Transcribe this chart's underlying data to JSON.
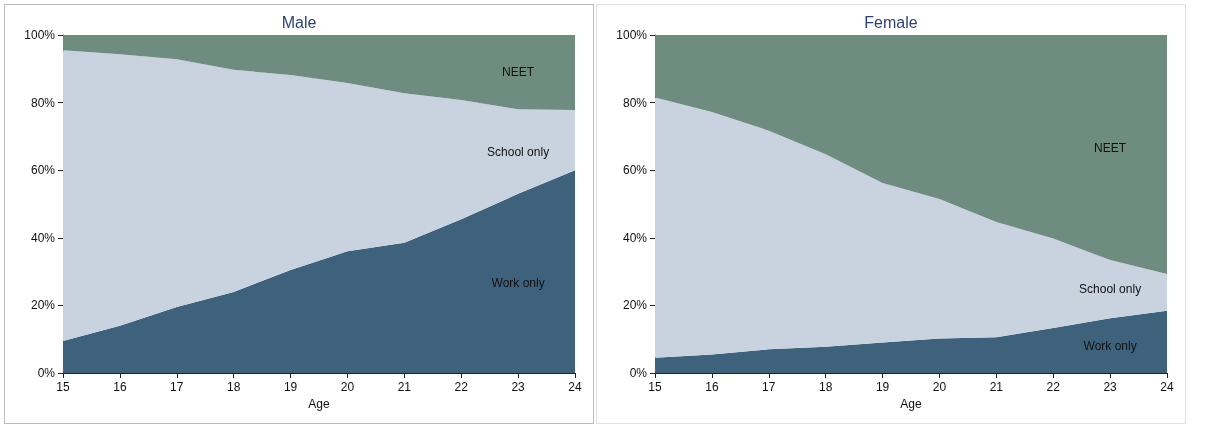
{
  "chart_data": [
    {
      "type": "area",
      "title": "Male",
      "xlabel": "Age",
      "stacked": true,
      "legend": false,
      "grid": false,
      "x": [
        15,
        16,
        17,
        18,
        19,
        20,
        21,
        22,
        23,
        24
      ],
      "xlim": [
        15,
        24
      ],
      "xticks": [
        15,
        16,
        17,
        18,
        19,
        20,
        21,
        22,
        23,
        24
      ],
      "ylim": [
        0,
        100
      ],
      "yticks": [
        {
          "value": 0,
          "label": "0%"
        },
        {
          "value": 20,
          "label": "20%"
        },
        {
          "value": 40,
          "label": "40%"
        },
        {
          "value": 60,
          "label": "60%"
        },
        {
          "value": 80,
          "label": "80%"
        },
        {
          "value": 100,
          "label": "100%"
        }
      ],
      "series": [
        {
          "name": "Work only",
          "color": "#3f627c",
          "values": [
            9.5,
            14,
            19.5,
            24,
            30.5,
            36,
            38.5,
            45.5,
            53,
            60
          ]
        },
        {
          "name": "School only",
          "color": "#c8d3df",
          "values": [
            86,
            80.3,
            73.3,
            65.7,
            57.7,
            49.8,
            44.3,
            35.3,
            25,
            17.8
          ]
        },
        {
          "name": "NEET",
          "color": "#6e8d80",
          "values": [
            4.5,
            5.7,
            7.2,
            10.3,
            11.8,
            14.2,
            17.2,
            19.2,
            22,
            22.2
          ]
        }
      ]
    },
    {
      "type": "area",
      "title": "Female",
      "xlabel": "Age",
      "stacked": true,
      "legend": false,
      "grid": false,
      "x": [
        15,
        16,
        17,
        18,
        19,
        20,
        21,
        22,
        23,
        24
      ],
      "xlim": [
        15,
        24
      ],
      "xticks": [
        15,
        16,
        17,
        18,
        19,
        20,
        21,
        22,
        23,
        24
      ],
      "ylim": [
        0,
        100
      ],
      "yticks": [
        {
          "value": 0,
          "label": "0%"
        },
        {
          "value": 20,
          "label": "20%"
        },
        {
          "value": 40,
          "label": "40%"
        },
        {
          "value": 60,
          "label": "60%"
        },
        {
          "value": 80,
          "label": "80%"
        },
        {
          "value": 100,
          "label": "100%"
        }
      ],
      "series": [
        {
          "name": "Work only",
          "color": "#3f627c",
          "values": [
            4.5,
            5.5,
            7,
            7.8,
            9,
            10.2,
            10.6,
            13.3,
            16.2,
            18.4
          ]
        },
        {
          "name": "School only",
          "color": "#c8d3df",
          "values": [
            77,
            71.7,
            64.7,
            56.9,
            47.2,
            41.3,
            34.1,
            26.5,
            17.2,
            10.9
          ]
        },
        {
          "name": "NEET",
          "color": "#6e8d80",
          "values": [
            18.5,
            22.8,
            28.3,
            35.3,
            43.8,
            48.5,
            55.3,
            60.2,
            66.6,
            70.7
          ]
        }
      ]
    }
  ]
}
